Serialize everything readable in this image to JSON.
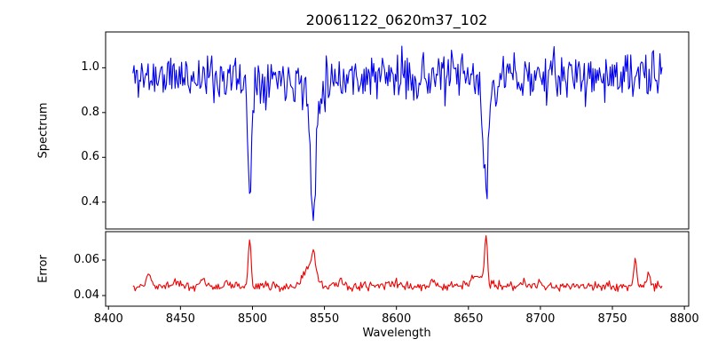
{
  "title": "20061122_0620m37_102",
  "xlabel": "Wavelength",
  "xlim": [
    8398,
    8803
  ],
  "xtick_values": [
    8400,
    8450,
    8500,
    8550,
    8600,
    8650,
    8700,
    8750,
    8800
  ],
  "xtick_labels": [
    "8400",
    "8450",
    "8500",
    "8550",
    "8600",
    "8650",
    "8700",
    "8750",
    "8800"
  ],
  "chart_data": [
    {
      "type": "line",
      "name": "spectrum",
      "color": "#0000ee",
      "ylabel": "Spectrum",
      "ylim": [
        0.28,
        1.16
      ],
      "ytick_values": [
        0.4,
        0.6,
        0.8,
        1.0
      ],
      "ytick_labels": [
        "0.4",
        "0.6",
        "0.8",
        "1.0"
      ],
      "x_start": 8417,
      "x_end": 8785,
      "x_step": 0.75,
      "baseline": 0.96,
      "noise_sigma": 0.052,
      "seed": 11,
      "absorption_line_centers": [
        8498,
        8542,
        8662
      ],
      "features": [
        {
          "center": 8498.0,
          "amplitude": -0.46,
          "sigma": 1.2
        },
        {
          "center": 8498.0,
          "amplitude": -0.05,
          "sigma": 4.0
        },
        {
          "center": 8542.1,
          "amplitude": -0.55,
          "sigma": 1.7
        },
        {
          "center": 8542.1,
          "amplitude": -0.1,
          "sigma": 5.0
        },
        {
          "center": 8662.1,
          "amplitude": -0.5,
          "sigma": 1.5
        },
        {
          "center": 8662.1,
          "amplitude": -0.06,
          "sigma": 5.0
        }
      ]
    },
    {
      "type": "line",
      "name": "error",
      "color": "#ee0000",
      "ylabel": "Error",
      "ylim": [
        0.034,
        0.076
      ],
      "ytick_values": [
        0.04,
        0.06
      ],
      "ytick_labels": [
        "0.04",
        "0.06"
      ],
      "x_start": 8417,
      "x_end": 8785,
      "x_step": 0.75,
      "baseline": 0.0452,
      "noise_sigma": 0.0013,
      "seed": 99,
      "peak_centers": [
        8498,
        8542,
        8662,
        8766
      ],
      "features": [
        {
          "center": 8428.0,
          "amplitude": 0.007,
          "sigma": 1.4
        },
        {
          "center": 8446.0,
          "amplitude": 0.003,
          "sigma": 1.5
        },
        {
          "center": 8465.0,
          "amplitude": 0.0045,
          "sigma": 1.4
        },
        {
          "center": 8482.0,
          "amplitude": 0.002,
          "sigma": 2.0
        },
        {
          "center": 8498.1,
          "amplitude": 0.0265,
          "sigma": 0.9
        },
        {
          "center": 8540.0,
          "amplitude": 0.01,
          "sigma": 4.5
        },
        {
          "center": 8542.3,
          "amplitude": 0.013,
          "sigma": 1.1
        },
        {
          "center": 8562.0,
          "amplitude": 0.0025,
          "sigma": 3.0
        },
        {
          "center": 8600.0,
          "amplitude": 0.002,
          "sigma": 3.0
        },
        {
          "center": 8625.0,
          "amplitude": 0.0025,
          "sigma": 2.0
        },
        {
          "center": 8656.0,
          "amplitude": 0.006,
          "sigma": 4.0
        },
        {
          "center": 8662.2,
          "amplitude": 0.0285,
          "sigma": 1.0
        },
        {
          "center": 8688.0,
          "amplitude": 0.003,
          "sigma": 1.5
        },
        {
          "center": 8700.0,
          "amplitude": 0.0035,
          "sigma": 1.3
        },
        {
          "center": 8766.0,
          "amplitude": 0.0155,
          "sigma": 1.0
        },
        {
          "center": 8775.0,
          "amplitude": 0.0065,
          "sigma": 1.3
        }
      ]
    }
  ]
}
